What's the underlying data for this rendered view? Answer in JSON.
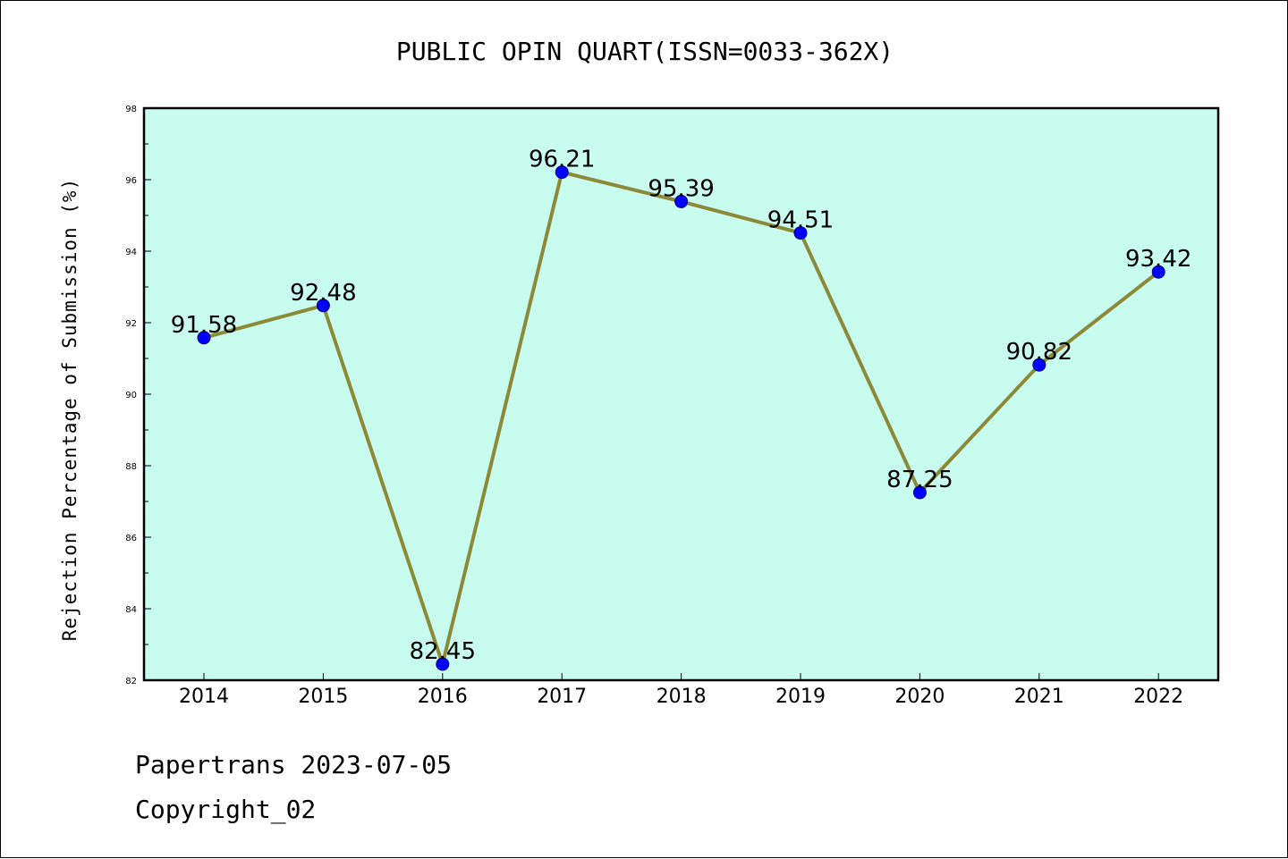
{
  "chart_data": {
    "type": "line",
    "title": "PUBLIC OPIN QUART(ISSN=0033-362X)",
    "xlabel": "",
    "ylabel": "Rejection Percentage of Submission (%)",
    "categories": [
      "2014",
      "2015",
      "2016",
      "2017",
      "2018",
      "2019",
      "2020",
      "2021",
      "2022"
    ],
    "series": [
      {
        "values": [
          91.58,
          92.48,
          82.45,
          96.21,
          95.39,
          94.51,
          87.25,
          90.82,
          93.42
        ]
      }
    ],
    "data_labels": [
      "91.58",
      "92.48",
      "82.45",
      "96.21",
      "95.39",
      "94.51",
      "87.25",
      "90.82",
      "93.42"
    ],
    "ylim": [
      82,
      98
    ],
    "yticks": [
      "82",
      "84",
      "86",
      "88",
      "90",
      "92",
      "94",
      "96",
      "98"
    ],
    "grid": false,
    "colors": {
      "plot_background": "#c8fcee",
      "line": "#8c8a38",
      "marker_fill": "#0000ff",
      "marker_edge": "#000080"
    }
  },
  "footer": {
    "line1": "Papertrans 2023-07-05",
    "line2": "Copyright_02"
  }
}
